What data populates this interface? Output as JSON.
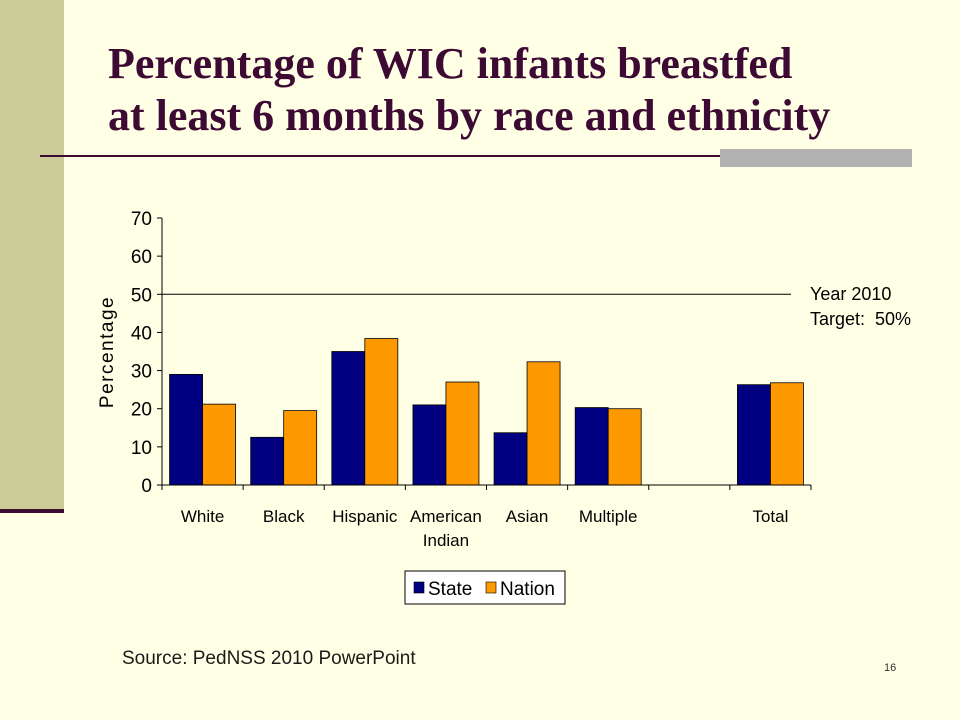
{
  "slide": {
    "title_line1": "Percentage of WIC infants breastfed",
    "title_line2": "at least 6 months by race and ethnicity",
    "source": "Source: PedNSS 2010 PowerPoint",
    "page_number": "16",
    "colors": {
      "background": "#FFFFE6",
      "sidebar": "#CCCC99",
      "title": "#3D0A33",
      "rule_accent": "#B2B2B2"
    }
  },
  "chart_data": {
    "type": "bar",
    "ylabel": "Percentage",
    "ylim": [
      0,
      70
    ],
    "yticks": [
      0,
      10,
      20,
      30,
      40,
      50,
      60,
      70
    ],
    "grid": false,
    "categories": [
      [
        "White"
      ],
      [
        "Black"
      ],
      [
        "Hispanic"
      ],
      [
        "American",
        "Indian"
      ],
      [
        "Asian"
      ],
      [
        "Multiple"
      ],
      [
        ""
      ],
      [
        "Total"
      ]
    ],
    "series": [
      {
        "name": "State",
        "color": "#000080",
        "values": [
          29,
          12.5,
          35,
          21,
          13.7,
          20.3,
          null,
          26.3
        ]
      },
      {
        "name": "Nation",
        "color": "#FF9900",
        "values": [
          21.2,
          19.5,
          38.4,
          27,
          32.3,
          20,
          null,
          26.8
        ]
      }
    ],
    "reference_line": {
      "value": 50,
      "label_lines": [
        "Year 2010",
        "Target:  50%"
      ]
    },
    "legend_position": "bottom"
  }
}
